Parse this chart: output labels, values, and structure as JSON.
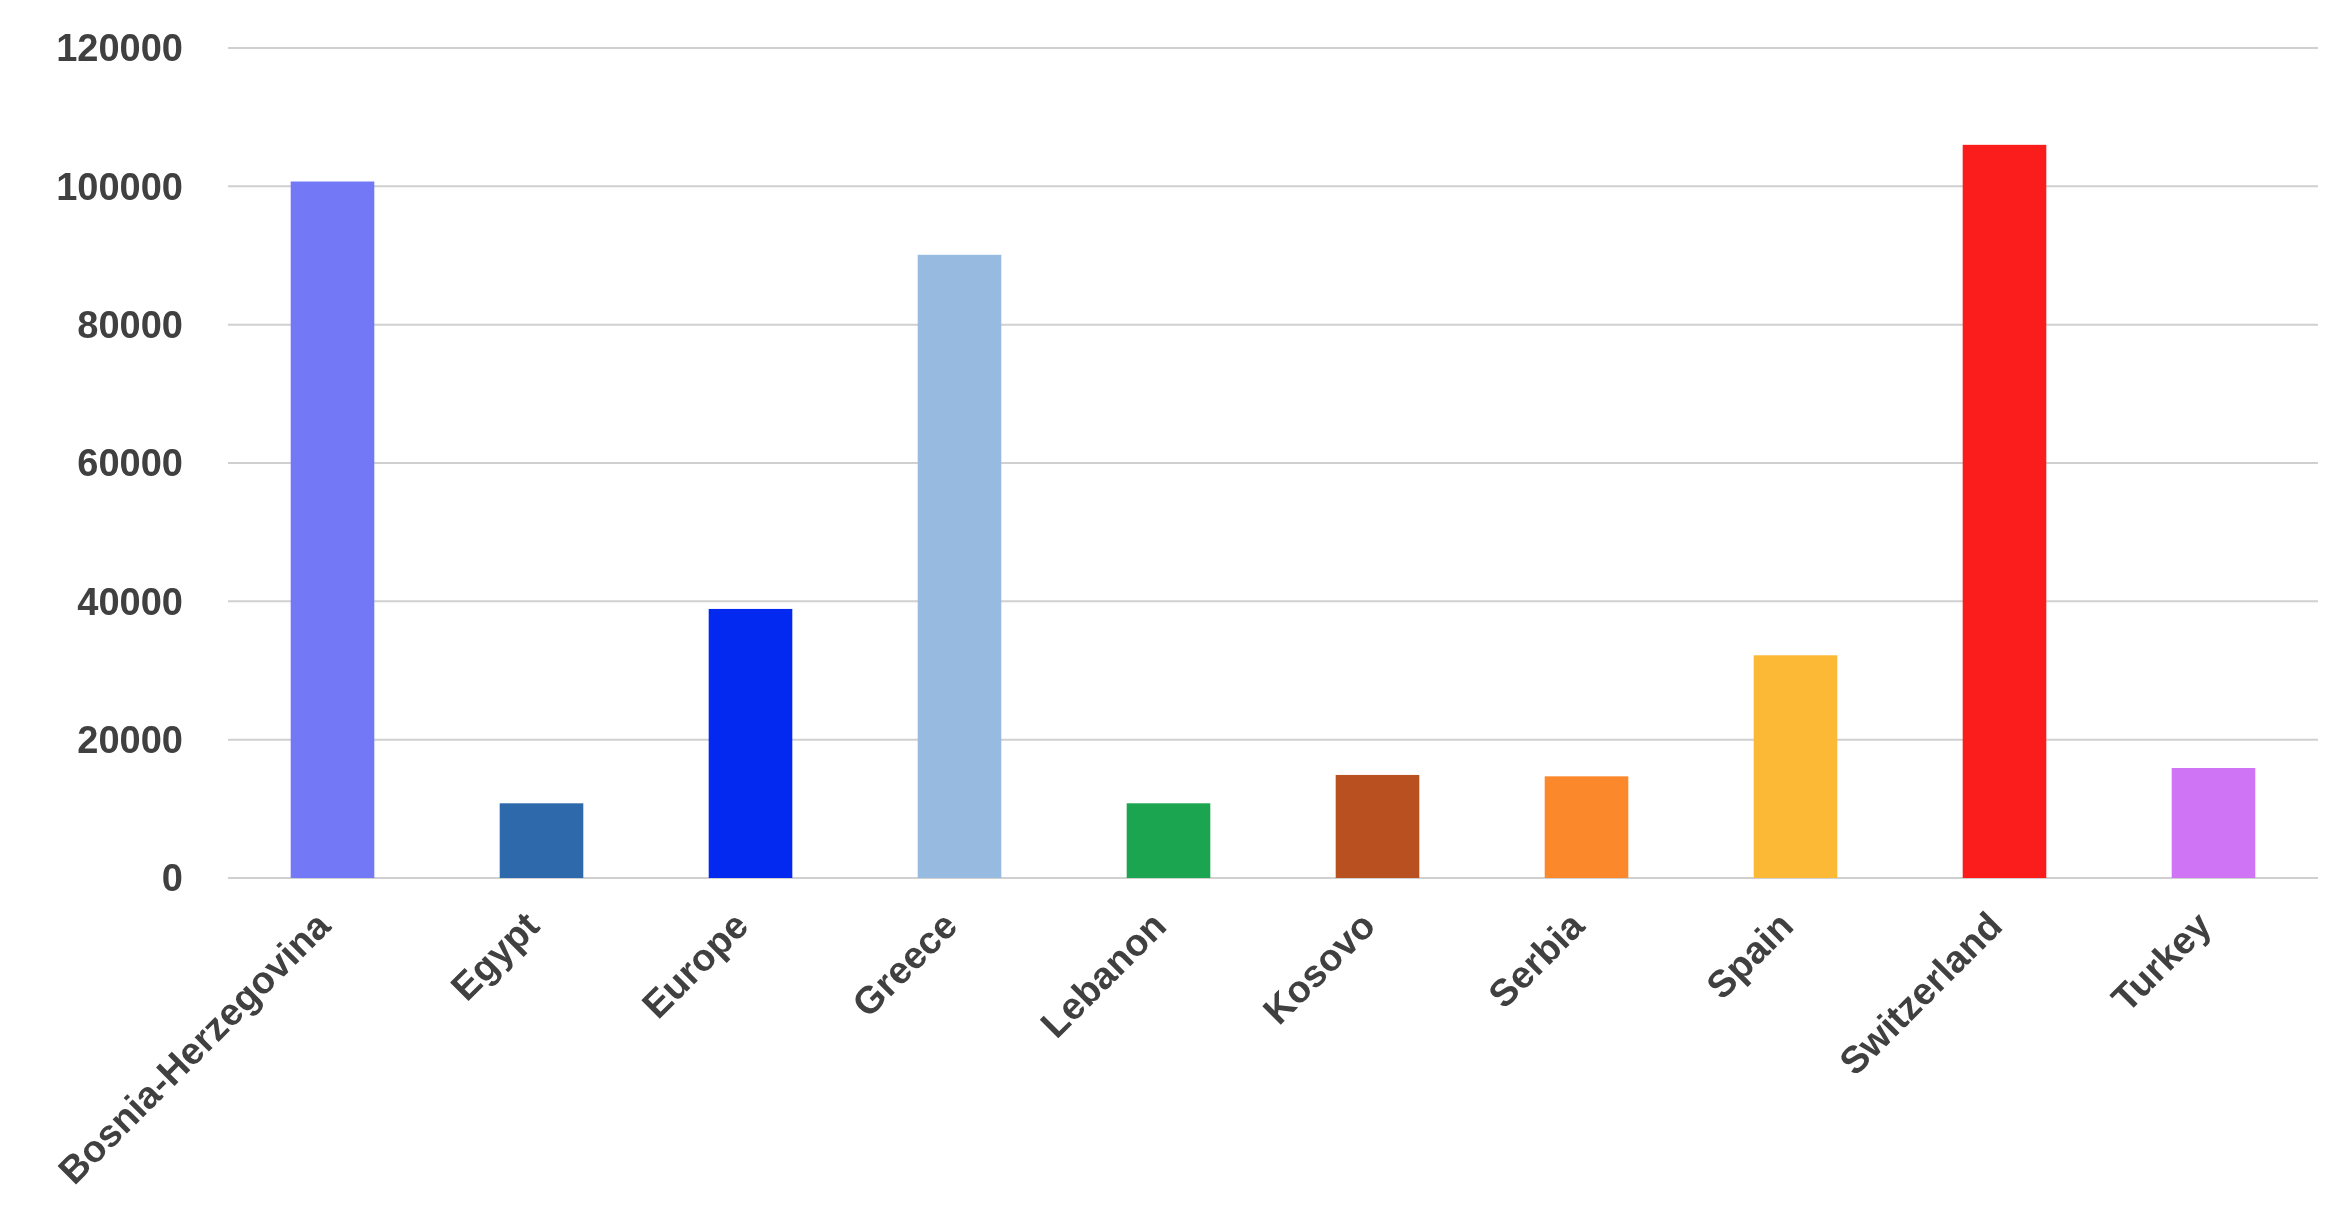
{
  "chart_data": {
    "type": "bar",
    "categories": [
      "Bosnia-Herzegovina",
      "Egypt",
      "Europe",
      "Greece",
      "Lebanon",
      "Kosovo",
      "Serbia",
      "Spain",
      "Switzerland",
      "Turkey"
    ],
    "values": [
      100700,
      10800,
      38900,
      90100,
      10800,
      14900,
      14700,
      32200,
      106000,
      15900
    ],
    "colors": [
      "#7378f7",
      "#2e6aab",
      "#0328f0",
      "#97bae0",
      "#1ca550",
      "#b85020",
      "#fb882a",
      "#fbb935",
      "#fb1c1c",
      "#cf74f5"
    ],
    "ylim": [
      0,
      120000
    ],
    "yticks": [
      0,
      20000,
      40000,
      60000,
      80000,
      100000,
      120000
    ],
    "grid": "y"
  }
}
